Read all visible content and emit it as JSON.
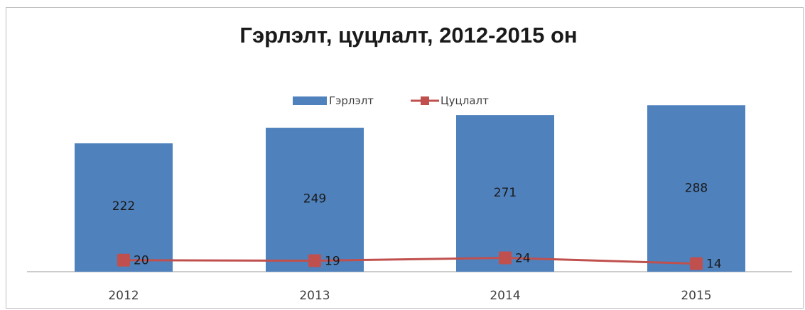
{
  "chart_data": {
    "type": "bar",
    "title": "Гэрлэлт, цуцлалт, 2012-2015 он",
    "categories": [
      "2012",
      "2013",
      "2014",
      "2015"
    ],
    "series": [
      {
        "name": "Гэрлэлт",
        "type": "bar",
        "values": [
          222,
          249,
          271,
          288
        ],
        "color": "#4f81bd"
      },
      {
        "name": "Цуцлалт",
        "type": "line",
        "values": [
          20,
          19,
          24,
          14
        ],
        "color": "#c0504d"
      }
    ],
    "xlabel": "",
    "ylabel": "",
    "ylim": [
      0,
      300
    ],
    "grid": false,
    "legend_position": "top"
  }
}
